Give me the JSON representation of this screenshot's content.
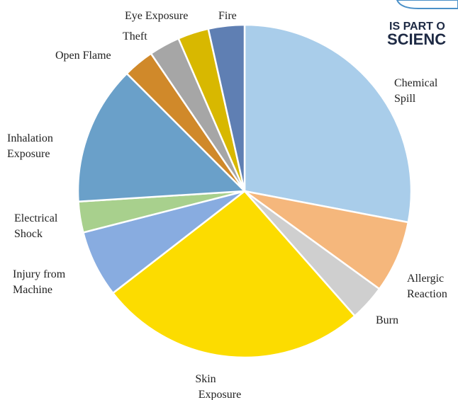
{
  "chart_data": {
    "type": "pie",
    "title": "",
    "slices": [
      {
        "label": "Chemical Spill",
        "value": 28,
        "color": "#a9cdea"
      },
      {
        "label": "Allergic Reaction",
        "value": 7,
        "color": "#f5b77c"
      },
      {
        "label": "Burn",
        "value": 3.5,
        "color": "#cfcfcf"
      },
      {
        "label": "Skin Exposure",
        "value": 26,
        "color": "#fcdc00"
      },
      {
        "label": "Injury from Machine",
        "value": 6.5,
        "color": "#88ace0"
      },
      {
        "label": "Electrical Shock",
        "value": 3,
        "color": "#a8d08d"
      },
      {
        "label": "Inhalation Exposure",
        "value": 13.5,
        "color": "#6aa0c9"
      },
      {
        "label": "Open Flame",
        "value": 3,
        "color": "#d0892a"
      },
      {
        "label": "Theft",
        "value": 3,
        "color": "#a6a6a6"
      },
      {
        "label": "Eye Exposure",
        "value": 3,
        "color": "#d8b800"
      },
      {
        "label": "Fire",
        "value": 3.5,
        "color": "#5f7fb3"
      }
    ],
    "legend": "none (labels outside slices)"
  },
  "logo": {
    "line1": "IS PART O",
    "line2": "SCIENC",
    "color": "#1e2a44"
  }
}
